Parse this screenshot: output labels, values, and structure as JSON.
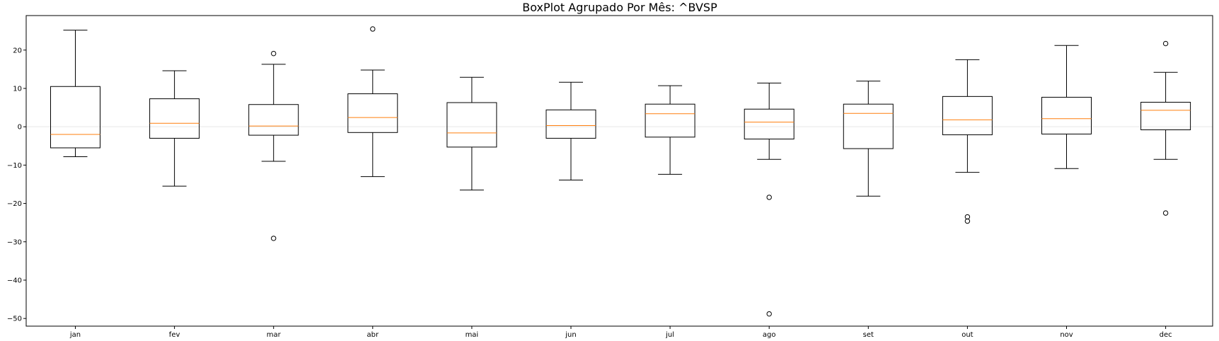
{
  "chart_data": {
    "type": "boxplot",
    "title": "BoxPlot Agrupado Por Mês: ^BVSP",
    "xlabel": "",
    "ylabel": "",
    "ylim": [
      -52,
      29
    ],
    "yticks": [
      20,
      10,
      0,
      -10,
      -20,
      -30,
      -40,
      -50
    ],
    "ytick_labels": [
      "20",
      "10",
      "0",
      "−10",
      "−20",
      "−30",
      "−40",
      "−50"
    ],
    "zero_line": true,
    "grid": false,
    "categories": [
      "jan",
      "fev",
      "mar",
      "abr",
      "mai",
      "jun",
      "jul",
      "ago",
      "set",
      "out",
      "nov",
      "dec"
    ],
    "boxes": [
      {
        "label": "jan",
        "whislo": -7.8,
        "q1": -5.5,
        "med": -2.0,
        "q3": 10.5,
        "whishi": 25.2,
        "fliers": []
      },
      {
        "label": "fev",
        "whislo": -15.5,
        "q1": -3.0,
        "med": 0.9,
        "q3": 7.3,
        "whishi": 14.6,
        "fliers": []
      },
      {
        "label": "mar",
        "whislo": -9.0,
        "q1": -2.2,
        "med": 0.2,
        "q3": 5.8,
        "whishi": 16.3,
        "fliers": [
          19.1,
          -29.1
        ]
      },
      {
        "label": "abr",
        "whislo": -13.0,
        "q1": -1.5,
        "med": 2.4,
        "q3": 8.6,
        "whishi": 14.8,
        "fliers": [
          25.5
        ]
      },
      {
        "label": "mai",
        "whislo": -16.5,
        "q1": -5.3,
        "med": -1.6,
        "q3": 6.3,
        "whishi": 12.9,
        "fliers": []
      },
      {
        "label": "jun",
        "whislo": -13.9,
        "q1": -3.0,
        "med": 0.3,
        "q3": 4.4,
        "whishi": 11.6,
        "fliers": []
      },
      {
        "label": "jul",
        "whislo": -12.4,
        "q1": -2.7,
        "med": 3.4,
        "q3": 5.9,
        "whishi": 10.7,
        "fliers": []
      },
      {
        "label": "ago",
        "whislo": -8.5,
        "q1": -3.2,
        "med": 1.2,
        "q3": 4.6,
        "whishi": 11.4,
        "fliers": [
          -18.4,
          -48.8
        ]
      },
      {
        "label": "set",
        "whislo": -18.1,
        "q1": -5.7,
        "med": 3.5,
        "q3": 5.9,
        "whishi": 11.9,
        "fliers": []
      },
      {
        "label": "out",
        "whislo": -11.9,
        "q1": -2.1,
        "med": 1.8,
        "q3": 7.9,
        "whishi": 17.5,
        "fliers": [
          -23.5,
          -24.6
        ]
      },
      {
        "label": "nov",
        "whislo": -10.9,
        "q1": -1.9,
        "med": 2.1,
        "q3": 7.7,
        "whishi": 21.2,
        "fliers": []
      },
      {
        "label": "dec",
        "whislo": -8.5,
        "q1": -0.8,
        "med": 4.3,
        "q3": 6.4,
        "whishi": 14.2,
        "fliers": [
          21.7,
          -22.5
        ]
      }
    ],
    "colors": {
      "box": "#000000",
      "median": "#ff7f0e",
      "flier": "#000000",
      "zero_line": "#e8e8e8"
    }
  }
}
